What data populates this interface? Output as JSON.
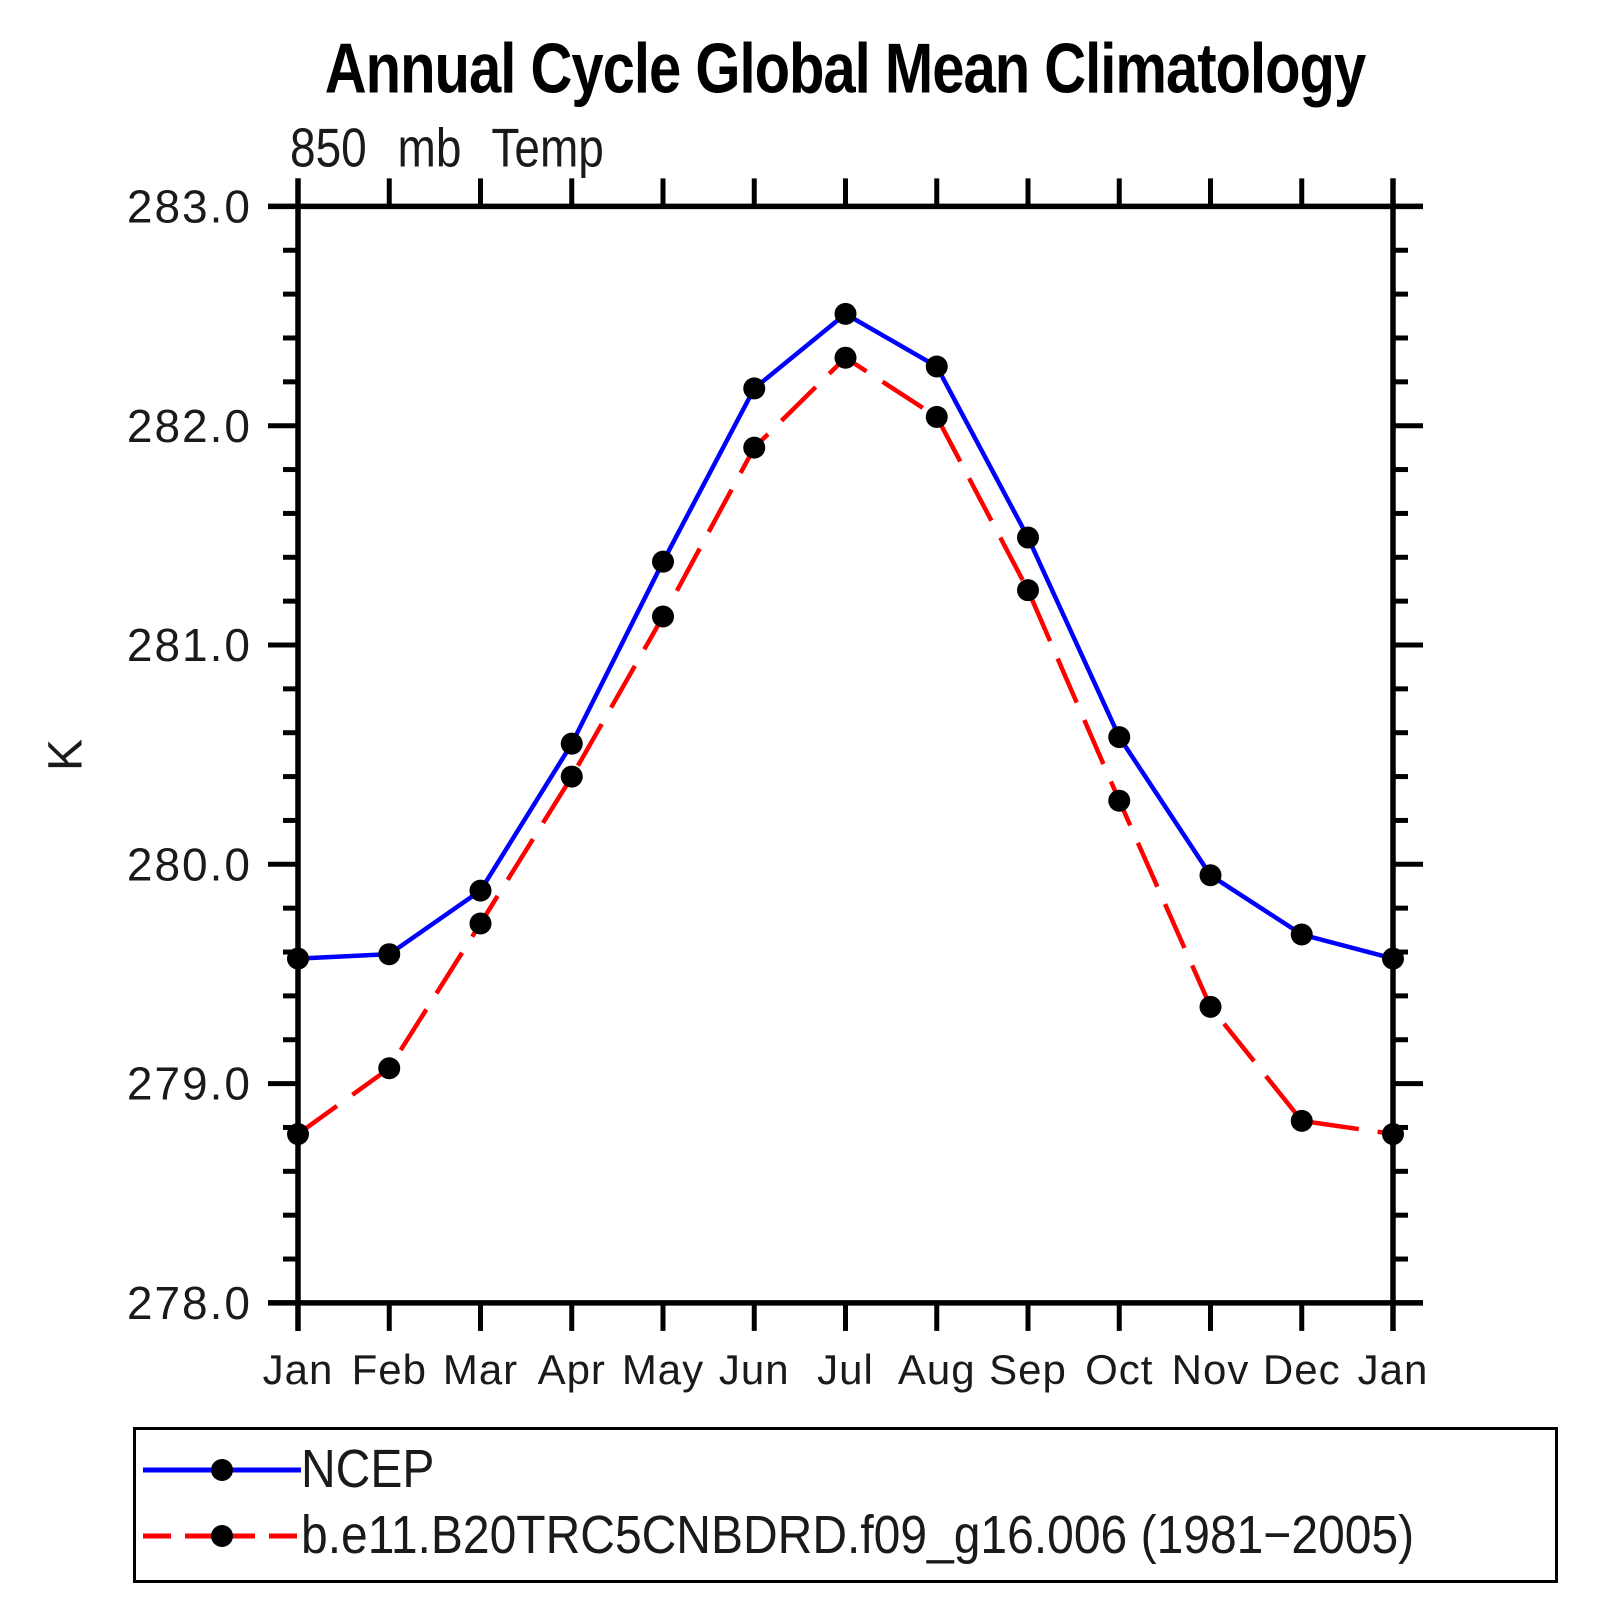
{
  "chart_data": {
    "type": "line",
    "title": "Annual Cycle Global Mean Climatology",
    "subtitle": "850 mb Temp",
    "ylabel": "K",
    "ylim": [
      278.0,
      283.0
    ],
    "ytick_major_step": 1.0,
    "ytick_minor_step": 0.2,
    "ytick_labels": [
      "278.0",
      "279.0",
      "280.0",
      "281.0",
      "282.0",
      "283.0"
    ],
    "categories": [
      "Jan",
      "Feb",
      "Mar",
      "Apr",
      "May",
      "Jun",
      "Jul",
      "Aug",
      "Sep",
      "Oct",
      "Nov",
      "Dec",
      "Jan"
    ],
    "grid": false,
    "legend_position": "bottom",
    "marker": "filled-circle",
    "marker_color": "#000000",
    "series": [
      {
        "name": "NCEP",
        "color": "#0000ff",
        "line_style": "solid",
        "values": [
          279.57,
          279.59,
          279.88,
          280.55,
          281.38,
          282.17,
          282.51,
          282.27,
          281.49,
          280.58,
          279.95,
          279.68,
          279.57
        ]
      },
      {
        "name": "b.e11.B20TRC5CNBDRD.f09_g16.006 (1981−2005)",
        "color": "#ff0000",
        "line_style": "dashed",
        "values": [
          278.77,
          279.07,
          279.73,
          280.4,
          281.13,
          281.9,
          282.31,
          282.04,
          281.25,
          280.29,
          279.35,
          278.83,
          278.77
        ]
      }
    ]
  }
}
